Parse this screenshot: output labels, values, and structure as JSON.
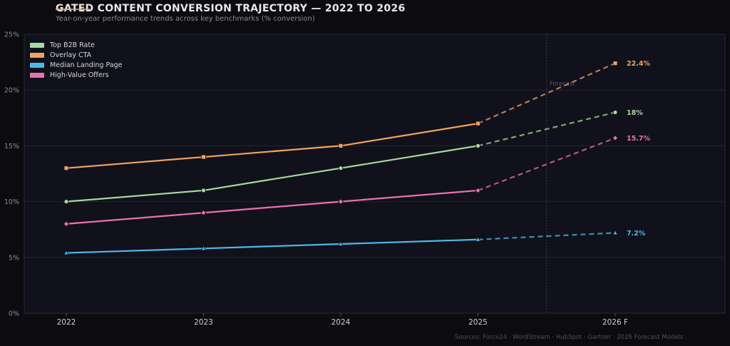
{
  "header": {
    "title": "GATED CONTENT CONVERSION TRAJECTORY — 2022 TO 2026",
    "subtitle": "Year-on-year performance trends across key benchmarks (% conversion)"
  },
  "footer": {
    "sources": "Sources: Force24 · WordStream · HubSpot · Gartner · 2026 Forecast Models"
  },
  "chart_data": {
    "type": "line",
    "categories": [
      "2022",
      "2023",
      "2024",
      "2025",
      "2026 F"
    ],
    "forecast_start_index": 3,
    "forecast_label": "Forecast",
    "ylim": [
      0,
      25
    ],
    "yticks": [
      "0%",
      "5%",
      "10%",
      "15%",
      "20%",
      "25%"
    ],
    "ytick_values": [
      0,
      5,
      10,
      15,
      20,
      25
    ],
    "grid": true,
    "legend_position": "top-left",
    "series": [
      {
        "name": "Top B2B Rate",
        "color": "#a8d8a0",
        "marker": "circle",
        "values": [
          10,
          11,
          13,
          15,
          18
        ],
        "end_label": "18%"
      },
      {
        "name": "Overlay CTA",
        "color": "#f0a35e",
        "marker": "square",
        "values": [
          13,
          14,
          15,
          17,
          22.4
        ],
        "end_label": "22.4%"
      },
      {
        "name": "Median Landing Page",
        "color": "#4fb8e8",
        "marker": "triangle",
        "values": [
          5.4,
          5.8,
          6.2,
          6.6,
          7.2
        ],
        "end_label": "7.2%"
      },
      {
        "name": "High-Value Offers",
        "color": "#ec6fb4",
        "marker": "diamond",
        "values": [
          8,
          9,
          10,
          11,
          15.7
        ],
        "end_label": "15.7%"
      }
    ]
  }
}
